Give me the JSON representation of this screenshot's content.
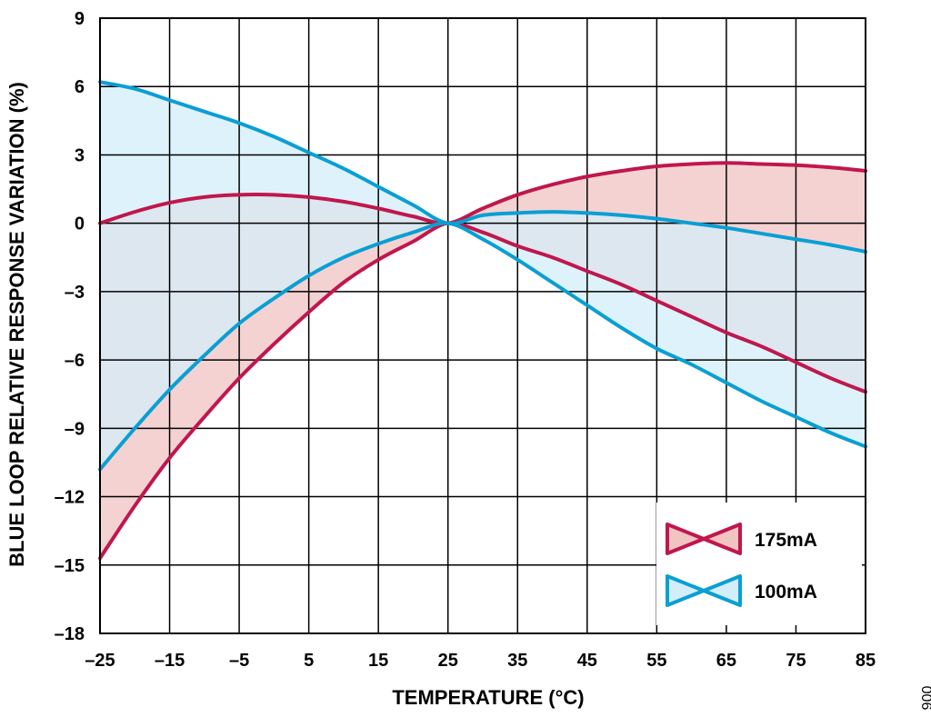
{
  "chart_data": {
    "type": "line",
    "xlabel": "TEMPERATURE (°C)",
    "ylabel": "BLUE LOOP RELATIVE RESPONSE VARIATION (%)",
    "xlim": [
      -25,
      85
    ],
    "ylim": [
      -18,
      9
    ],
    "x_ticks": [
      "–25",
      "–15",
      "–5",
      "5",
      "15",
      "25",
      "35",
      "45",
      "55",
      "65",
      "75",
      "85"
    ],
    "y_ticks": [
      "9",
      "6",
      "3",
      "0",
      "–3",
      "–6",
      "–9",
      "–12",
      "–15",
      "–18"
    ],
    "x_tick_values": [
      -25,
      -15,
      -5,
      5,
      15,
      25,
      35,
      45,
      55,
      65,
      75,
      85
    ],
    "y_tick_values": [
      9,
      6,
      3,
      0,
      -3,
      -6,
      -9,
      -12,
      -15,
      -18
    ],
    "grid": true,
    "legend_position": "bottom-right",
    "x": [
      -25,
      -20,
      -15,
      -10,
      -5,
      0,
      5,
      10,
      15,
      20,
      25,
      30,
      35,
      40,
      45,
      50,
      55,
      60,
      65,
      70,
      75,
      80,
      85
    ],
    "series": [
      {
        "name": "175mA",
        "color": "#c0174d",
        "fill": "#f2c3c3",
        "upper": [
          0,
          0.5,
          0.9,
          1.15,
          1.25,
          1.25,
          1.15,
          0.95,
          0.65,
          0.3,
          0,
          0.65,
          1.25,
          1.7,
          2.05,
          2.3,
          2.5,
          2.6,
          2.65,
          2.6,
          2.55,
          2.45,
          2.3
        ],
        "lower": [
          -14.7,
          -12.4,
          -10.3,
          -8.5,
          -6.8,
          -5.3,
          -3.9,
          -2.6,
          -1.6,
          -0.8,
          0,
          -0.4,
          -1.0,
          -1.5,
          -2.1,
          -2.7,
          -3.4,
          -4.1,
          -4.8,
          -5.4,
          -6.1,
          -6.8,
          -7.4
        ]
      },
      {
        "name": "100mA",
        "color": "#0a9fd3",
        "fill": "#d3eefa",
        "upper": [
          6.2,
          5.9,
          5.4,
          4.9,
          4.4,
          3.8,
          3.1,
          2.4,
          1.6,
          0.8,
          0,
          0.35,
          0.45,
          0.5,
          0.45,
          0.35,
          0.2,
          0,
          -0.2,
          -0.45,
          -0.7,
          -0.95,
          -1.25
        ],
        "lower": [
          -10.8,
          -9.0,
          -7.3,
          -5.8,
          -4.4,
          -3.3,
          -2.3,
          -1.5,
          -0.9,
          -0.4,
          0,
          -0.7,
          -1.6,
          -2.6,
          -3.6,
          -4.6,
          -5.5,
          -6.2,
          -7.0,
          -7.8,
          -8.5,
          -9.2,
          -9.8
        ]
      }
    ],
    "figure_id": "006"
  }
}
